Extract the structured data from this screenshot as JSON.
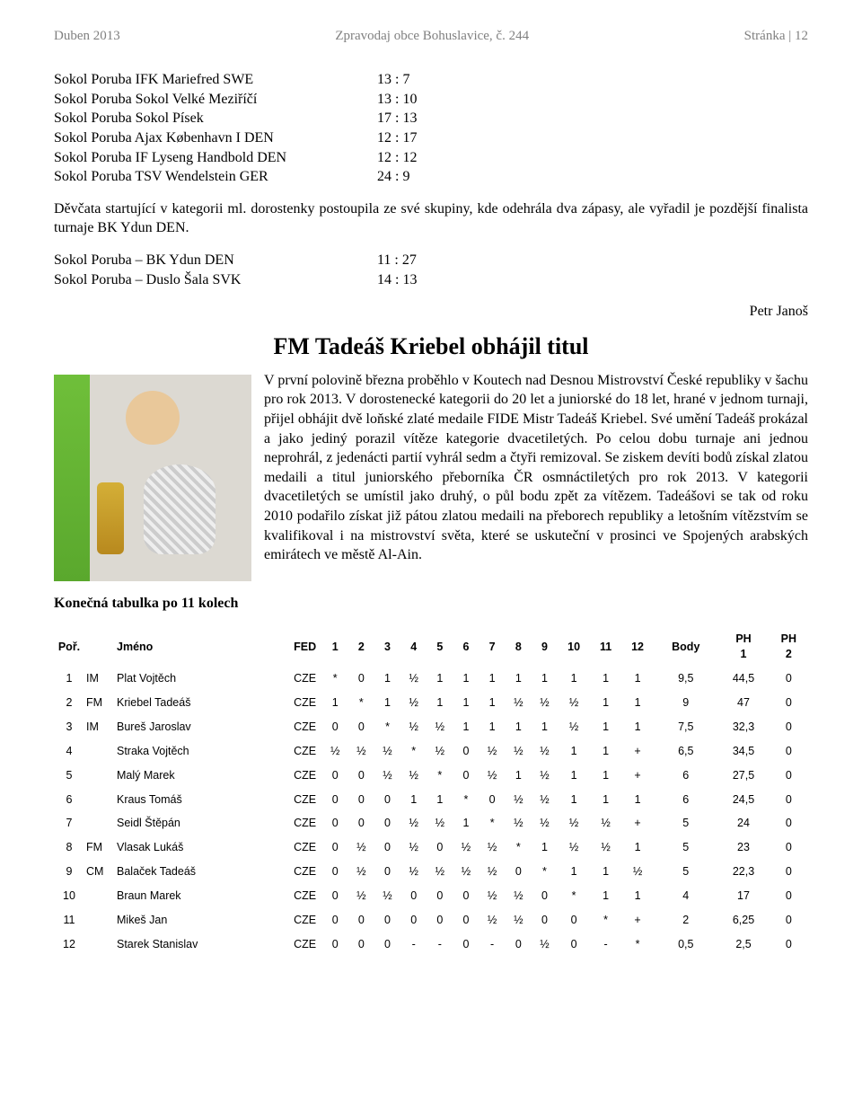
{
  "header": {
    "left": "Duben 2013",
    "center": "Zpravodaj obce Bohuslavice, č. 244",
    "right": "Stránka | 12"
  },
  "matches1": [
    {
      "name": "Sokol Poruba IFK Mariefred SWE",
      "score": "13 : 7"
    },
    {
      "name": "Sokol Poruba Sokol Velké Meziříčí",
      "score": "13 : 10"
    },
    {
      "name": "Sokol Poruba Sokol Písek",
      "score": "17 : 13"
    },
    {
      "name": "Sokol Poruba Ajax København I  DEN",
      "score": "12 : 17"
    },
    {
      "name": "Sokol Poruba IF Lyseng Handbold  DEN",
      "score": "12 : 12"
    },
    {
      "name": "Sokol Poruba TSV Wendelstein GER",
      "score": "24 : 9"
    }
  ],
  "para1": "Děvčata startující v kategorii ml. dorostenky postoupila ze své skupiny,  kde odehrála dva zápasy, ale vyřadil je pozdější finalista turnaje BK Ydun DEN.",
  "matches2": [
    {
      "name": "Sokol Poruba – BK Ydun DEN",
      "score": "11 : 27"
    },
    {
      "name": "Sokol Poruba – Duslo Šala SVK",
      "score": "14 : 13"
    }
  ],
  "author": "Petr Janoš",
  "article": {
    "title": "FM Tadeáš Kriebel obhájil titul",
    "body": "V první polovině března proběhlo v Koutech nad Desnou Mistrovství České republiky v šachu pro rok 2013. V dorostenecké kategorii do 20 let a juniorské do 18 let, hrané v jednom turnaji,  přijel obhájit dvě loňské zlaté medaile FIDE Mistr Tadeáš Kriebel. Své umění Tadeáš prokázal a jako jediný porazil vítěze kategorie dvacetiletých. Po celou dobu turnaje ani jednou neprohrál, z jedenácti partií vyhrál sedm a čtyři remizoval. Se ziskem devíti bodů získal zlatou medaili a titul juniorského přeborníka ČR osmnáctiletých pro rok 2013. V kategorii dvacetiletých se umístil jako druhý, o půl bodu zpět za vítězem. Tadeášovi se tak od roku 2010 podařilo získat již pátou zlatou medaili na přeborech republiky a letošním vítězstvím se kvalifikoval i na mistrovství světa, které se uskuteční v prosinci ve Spojených arabských emirátech ve městě Al-Ain."
  },
  "tableCaption": "Konečná tabulka po 11 kolech",
  "table": {
    "headers": [
      "Poř.",
      "",
      "Jméno",
      "FED",
      "1",
      "2",
      "3",
      "4",
      "5",
      "6",
      "7",
      "8",
      "9",
      "10",
      "11",
      "12",
      "Body",
      "PH 1",
      "PH 2"
    ],
    "rows": [
      [
        "1",
        "IM",
        "Plat Vojtěch",
        "CZE",
        "*",
        "0",
        "1",
        "½",
        "1",
        "1",
        "1",
        "1",
        "1",
        "1",
        "1",
        "1",
        "9,5",
        "44,5",
        "0"
      ],
      [
        "2",
        "FM",
        "Kriebel Tadeáš",
        "CZE",
        "1",
        "*",
        "1",
        "½",
        "1",
        "1",
        "1",
        "½",
        "½",
        "½",
        "1",
        "1",
        "9",
        "47",
        "0"
      ],
      [
        "3",
        "IM",
        "Bureš Jaroslav",
        "CZE",
        "0",
        "0",
        "*",
        "½",
        "½",
        "1",
        "1",
        "1",
        "1",
        "½",
        "1",
        "1",
        "7,5",
        "32,3",
        "0"
      ],
      [
        "4",
        "",
        "Straka Vojtěch",
        "CZE",
        "½",
        "½",
        "½",
        "*",
        "½",
        "0",
        "½",
        "½",
        "½",
        "1",
        "1",
        "+",
        "6,5",
        "34,5",
        "0"
      ],
      [
        "5",
        "",
        "Malý Marek",
        "CZE",
        "0",
        "0",
        "½",
        "½",
        "*",
        "0",
        "½",
        "1",
        "½",
        "1",
        "1",
        "+",
        "6",
        "27,5",
        "0"
      ],
      [
        "6",
        "",
        "Kraus Tomáš",
        "CZE",
        "0",
        "0",
        "0",
        "1",
        "1",
        "*",
        "0",
        "½",
        "½",
        "1",
        "1",
        "1",
        "6",
        "24,5",
        "0"
      ],
      [
        "7",
        "",
        "Seidl Štěpán",
        "CZE",
        "0",
        "0",
        "0",
        "½",
        "½",
        "1",
        "*",
        "½",
        "½",
        "½",
        "½",
        "+",
        "5",
        "24",
        "0"
      ],
      [
        "8",
        "FM",
        "Vlasak Lukáš",
        "CZE",
        "0",
        "½",
        "0",
        "½",
        "0",
        "½",
        "½",
        "*",
        "1",
        "½",
        "½",
        "1",
        "5",
        "23",
        "0"
      ],
      [
        "9",
        "CM",
        "Balaček Tadeáš",
        "CZE",
        "0",
        "½",
        "0",
        "½",
        "½",
        "½",
        "½",
        "0",
        "*",
        "1",
        "1",
        "½",
        "5",
        "22,3",
        "0"
      ],
      [
        "10",
        "",
        "Braun Marek",
        "CZE",
        "0",
        "½",
        "½",
        "0",
        "0",
        "0",
        "½",
        "½",
        "0",
        "*",
        "1",
        "1",
        "4",
        "17",
        "0"
      ],
      [
        "11",
        "",
        "Mikeš Jan",
        "CZE",
        "0",
        "0",
        "0",
        "0",
        "0",
        "0",
        "½",
        "½",
        "0",
        "0",
        "*",
        "+",
        "2",
        "6,25",
        "0"
      ],
      [
        "12",
        "",
        "Starek Stanislav",
        "CZE",
        "0",
        "0",
        "0",
        "-",
        "-",
        "0",
        "-",
        "0",
        "½",
        "0",
        "-",
        "*",
        "0,5",
        "2,5",
        "0"
      ]
    ]
  }
}
